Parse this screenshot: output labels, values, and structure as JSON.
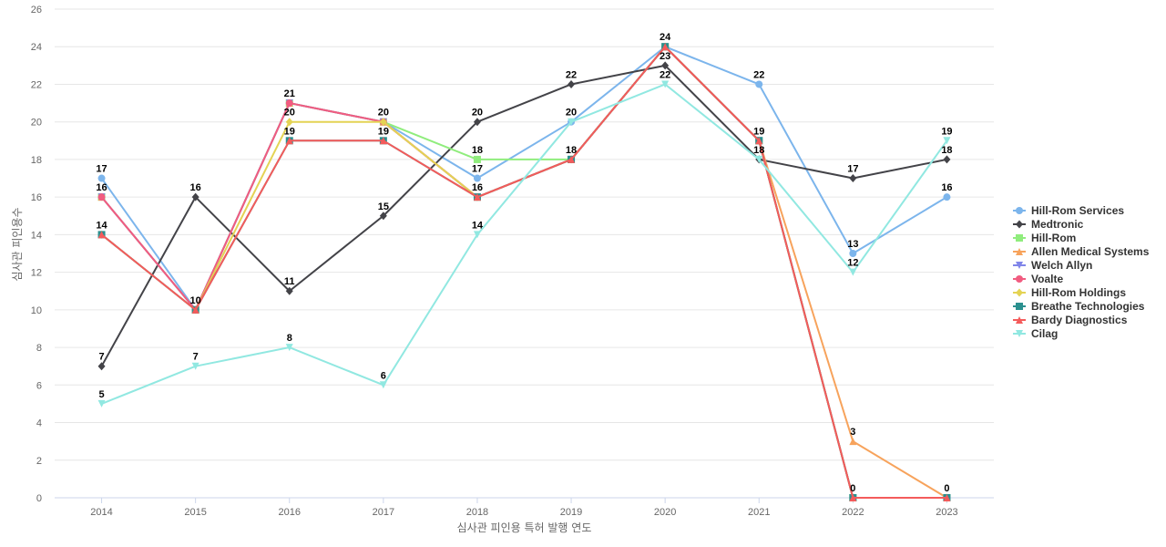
{
  "chart_data": {
    "type": "line",
    "title": "",
    "xlabel": "심사관 피인용 특허 발행 연도",
    "ylabel": "심사관 피인용수",
    "ylim": [
      0,
      26
    ],
    "yticks": [
      0,
      2,
      4,
      6,
      8,
      10,
      12,
      14,
      16,
      18,
      20,
      22,
      24,
      26
    ],
    "grid": true,
    "legend_position": "right",
    "categories": [
      "2014",
      "2015",
      "2016",
      "2017",
      "2018",
      "2019",
      "2020",
      "2021",
      "2022",
      "2023"
    ],
    "series": [
      {
        "name": "Hill-Rom Services",
        "color": "#7cb5ec",
        "marker": "circle",
        "values": [
          17,
          10,
          21,
          20,
          17,
          20,
          24,
          22,
          13,
          16
        ],
        "labeled": [
          true,
          false,
          false,
          false,
          true,
          false,
          false,
          true,
          true,
          true
        ]
      },
      {
        "name": "Medtronic",
        "color": "#434348",
        "marker": "diamond",
        "values": [
          7,
          16,
          11,
          15,
          20,
          22,
          23,
          18,
          17,
          18
        ],
        "labeled": [
          true,
          true,
          true,
          true,
          true,
          true,
          true,
          false,
          true,
          true
        ]
      },
      {
        "name": "Hill-Rom",
        "color": "#90ed7d",
        "marker": "square",
        "values": [
          16,
          10,
          21,
          20,
          18,
          18,
          24,
          19,
          0,
          0
        ],
        "labeled": [
          false,
          false,
          false,
          false,
          true,
          false,
          false,
          false,
          false,
          false
        ]
      },
      {
        "name": "Allen Medical Systems",
        "color": "#f7a35c",
        "marker": "triangle",
        "values": [
          16,
          10,
          21,
          20,
          16,
          18,
          24,
          19,
          3,
          0
        ],
        "labeled": [
          false,
          false,
          false,
          false,
          false,
          false,
          false,
          false,
          true,
          false
        ]
      },
      {
        "name": "Welch Allyn",
        "color": "#8085e9",
        "marker": "triangle-down",
        "values": [
          16,
          10,
          21,
          20,
          16,
          18,
          24,
          19,
          0,
          0
        ],
        "labeled": [
          false,
          false,
          false,
          false,
          false,
          false,
          false,
          false,
          false,
          false
        ]
      },
      {
        "name": "Voalte",
        "color": "#f15c80",
        "marker": "circle",
        "values": [
          16,
          10,
          21,
          20,
          16,
          18,
          24,
          19,
          0,
          0
        ],
        "labeled": [
          true,
          false,
          true,
          false,
          false,
          false,
          false,
          false,
          false,
          false
        ]
      },
      {
        "name": "Hill-Rom Holdings",
        "color": "#e4d354",
        "marker": "diamond",
        "values": [
          14,
          10,
          20,
          20,
          16,
          18,
          24,
          19,
          0,
          0
        ],
        "labeled": [
          false,
          false,
          true,
          true,
          false,
          false,
          false,
          false,
          false,
          false
        ]
      },
      {
        "name": "Breathe Technologies",
        "color": "#2b908f",
        "marker": "square",
        "values": [
          14,
          10,
          19,
          19,
          16,
          18,
          24,
          19,
          0,
          0
        ],
        "labeled": [
          false,
          false,
          false,
          false,
          false,
          false,
          false,
          false,
          false,
          false
        ]
      },
      {
        "name": "Bardy Diagnostics",
        "color": "#f45b5b",
        "marker": "triangle",
        "values": [
          14,
          10,
          19,
          19,
          16,
          18,
          24,
          19,
          0,
          0
        ],
        "labeled": [
          true,
          true,
          true,
          true,
          true,
          true,
          true,
          true,
          true,
          true
        ]
      },
      {
        "name": "Cilag",
        "color": "#91e8e1",
        "marker": "triangle-down",
        "values": [
          5,
          7,
          8,
          6,
          14,
          20,
          22,
          18,
          12,
          19
        ],
        "labeled": [
          true,
          true,
          true,
          true,
          true,
          true,
          true,
          true,
          true,
          true
        ]
      }
    ]
  }
}
